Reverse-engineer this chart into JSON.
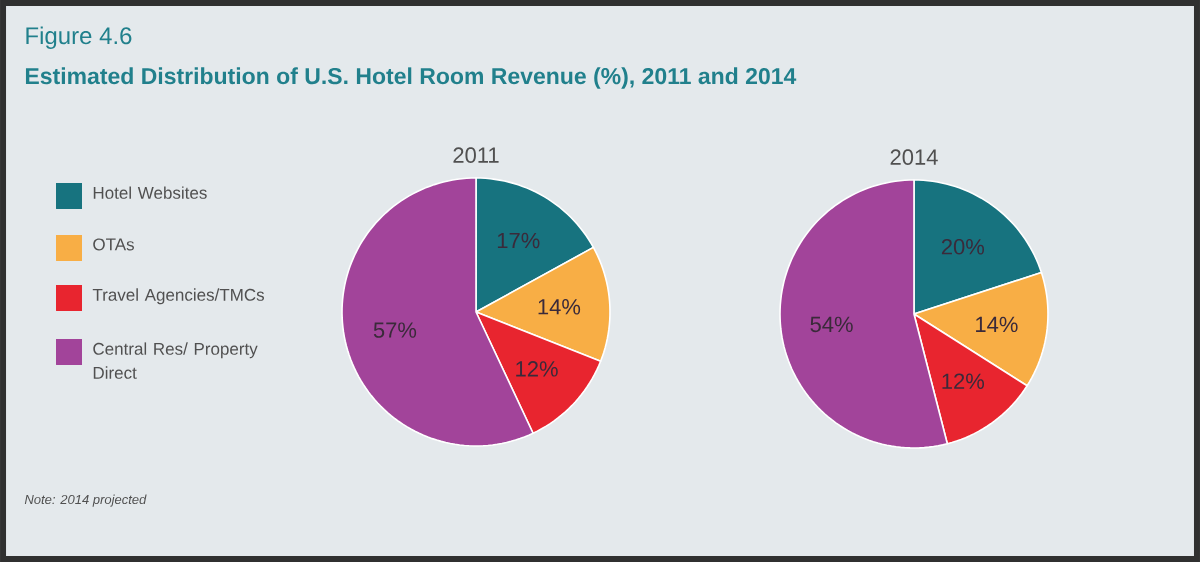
{
  "chart_data": [
    {
      "type": "other",
      "title": "Figure 4.6",
      "subtitle": "Estimated Distribution of U.S. Hotel Room Revenue (%), 2011 and 2014",
      "annotations": [
        "Note: 2014 projected"
      ]
    },
    {
      "type": "pie",
      "title": "2011",
      "categories": [
        "Hotel Websites",
        "OTAs",
        "Travel Agencies/TMCs",
        "Central Res/ Property Direct"
      ],
      "values": [
        17,
        14,
        12,
        57
      ],
      "value_labels": [
        "17%",
        "14%",
        "12%",
        "57%"
      ],
      "colors": [
        "#17737f",
        "#f8ae45",
        "#e8252f",
        "#a2449a"
      ],
      "legend": "left"
    },
    {
      "type": "pie",
      "title": "2014",
      "categories": [
        null,
        null,
        null,
        null
      ],
      "values": [
        20,
        14,
        12,
        54
      ],
      "value_labels": [
        "20%",
        "14%",
        "12%",
        "54%"
      ],
      "colors": [
        "#17737f",
        "#f8ae45",
        "#e8252f",
        "#a2449a"
      ]
    }
  ]
}
